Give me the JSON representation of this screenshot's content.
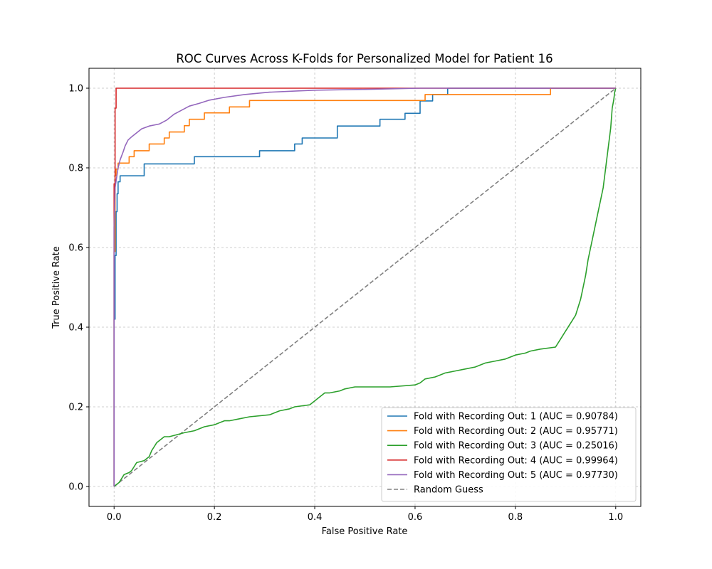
{
  "chart_data": {
    "type": "line",
    "title": "ROC Curves Across K-Folds for Personalized Model for Patient 16",
    "xlabel": "False Positive Rate",
    "ylabel": "True Positive Rate",
    "xlim": [
      -0.05,
      1.05
    ],
    "ylim": [
      -0.05,
      1.05
    ],
    "xticks": [
      0.0,
      0.2,
      0.4,
      0.6,
      0.8,
      1.0
    ],
    "yticks": [
      0.0,
      0.2,
      0.4,
      0.6,
      0.8,
      1.0
    ],
    "xtick_labels": [
      "0.0",
      "0.2",
      "0.4",
      "0.6",
      "0.8",
      "1.0"
    ],
    "ytick_labels": [
      "0.0",
      "0.2",
      "0.4",
      "0.6",
      "0.8",
      "1.0"
    ],
    "grid": true,
    "legend_position": "lower-right",
    "series": [
      {
        "name": "Fold with Recording Out: 1 (AUC = 0.90784)",
        "color": "#1f77b4",
        "style": "solid",
        "x": [
          0.0,
          0.0,
          0.002,
          0.002,
          0.004,
          0.004,
          0.006,
          0.006,
          0.008,
          0.008,
          0.012,
          0.012,
          0.06,
          0.06,
          0.16,
          0.16,
          0.29,
          0.29,
          0.36,
          0.36,
          0.375,
          0.375,
          0.445,
          0.445,
          0.53,
          0.53,
          0.58,
          0.58,
          0.61,
          0.61,
          0.635,
          0.635,
          0.665,
          0.665,
          1.0
        ],
        "y": [
          0.0,
          0.42,
          0.42,
          0.58,
          0.58,
          0.69,
          0.69,
          0.735,
          0.735,
          0.765,
          0.765,
          0.78,
          0.78,
          0.81,
          0.81,
          0.828,
          0.828,
          0.843,
          0.843,
          0.86,
          0.86,
          0.875,
          0.875,
          0.905,
          0.905,
          0.922,
          0.922,
          0.937,
          0.937,
          0.968,
          0.968,
          0.984,
          0.984,
          1.0,
          1.0
        ]
      },
      {
        "name": "Fold with Recording Out: 2 (AUC = 0.95771)",
        "color": "#ff7f0e",
        "style": "solid",
        "x": [
          0.0,
          0.0,
          0.002,
          0.002,
          0.004,
          0.004,
          0.008,
          0.008,
          0.03,
          0.03,
          0.04,
          0.04,
          0.07,
          0.07,
          0.1,
          0.1,
          0.11,
          0.11,
          0.14,
          0.14,
          0.15,
          0.15,
          0.18,
          0.18,
          0.23,
          0.23,
          0.27,
          0.27,
          0.62,
          0.62,
          0.87,
          0.87,
          1.0
        ],
        "y": [
          0.0,
          0.59,
          0.59,
          0.78,
          0.78,
          0.797,
          0.797,
          0.812,
          0.812,
          0.828,
          0.828,
          0.843,
          0.843,
          0.86,
          0.86,
          0.875,
          0.875,
          0.89,
          0.89,
          0.906,
          0.906,
          0.922,
          0.922,
          0.938,
          0.938,
          0.953,
          0.953,
          0.969,
          0.969,
          0.984,
          0.984,
          1.0,
          1.0
        ]
      },
      {
        "name": "Fold with Recording Out: 3 (AUC = 0.25016)",
        "color": "#2ca02c",
        "style": "solid",
        "x": [
          0.0,
          0.01,
          0.015,
          0.02,
          0.03,
          0.035,
          0.04,
          0.045,
          0.06,
          0.07,
          0.075,
          0.08,
          0.085,
          0.09,
          0.1,
          0.11,
          0.14,
          0.16,
          0.18,
          0.2,
          0.21,
          0.22,
          0.23,
          0.25,
          0.27,
          0.31,
          0.32,
          0.33,
          0.35,
          0.36,
          0.39,
          0.4,
          0.41,
          0.42,
          0.43,
          0.45,
          0.46,
          0.48,
          0.5,
          0.55,
          0.6,
          0.61,
          0.62,
          0.64,
          0.65,
          0.66,
          0.68,
          0.7,
          0.72,
          0.74,
          0.76,
          0.78,
          0.8,
          0.82,
          0.83,
          0.85,
          0.88,
          0.89,
          0.9,
          0.91,
          0.92,
          0.93,
          0.935,
          0.94,
          0.945,
          0.95,
          0.955,
          0.96,
          0.965,
          0.97,
          0.975,
          0.98,
          0.985,
          0.99,
          0.993,
          0.996,
          0.998,
          1.0
        ],
        "y": [
          0.0,
          0.01,
          0.02,
          0.03,
          0.035,
          0.04,
          0.05,
          0.06,
          0.065,
          0.075,
          0.09,
          0.1,
          0.11,
          0.115,
          0.125,
          0.125,
          0.135,
          0.14,
          0.15,
          0.155,
          0.16,
          0.165,
          0.165,
          0.17,
          0.175,
          0.18,
          0.185,
          0.19,
          0.195,
          0.2,
          0.205,
          0.215,
          0.225,
          0.235,
          0.235,
          0.24,
          0.245,
          0.25,
          0.25,
          0.25,
          0.255,
          0.26,
          0.27,
          0.275,
          0.28,
          0.285,
          0.29,
          0.295,
          0.3,
          0.31,
          0.315,
          0.32,
          0.33,
          0.335,
          0.34,
          0.345,
          0.35,
          0.37,
          0.39,
          0.41,
          0.43,
          0.47,
          0.5,
          0.53,
          0.57,
          0.6,
          0.63,
          0.66,
          0.69,
          0.72,
          0.75,
          0.8,
          0.85,
          0.9,
          0.95,
          0.97,
          0.99,
          1.0
        ]
      },
      {
        "name": "Fold with Recording Out: 4 (AUC = 0.99964)",
        "color": "#d62728",
        "style": "solid",
        "x": [
          0.0,
          0.0,
          0.0,
          0.002,
          0.002,
          0.004,
          0.004,
          1.0
        ],
        "y": [
          0.0,
          0.6,
          0.76,
          0.76,
          0.95,
          0.95,
          1.0,
          1.0
        ]
      },
      {
        "name": "Fold with Recording Out: 5 (AUC = 0.97730)",
        "color": "#9467bd",
        "style": "solid",
        "x": [
          0.0,
          0.0,
          0.002,
          0.005,
          0.008,
          0.012,
          0.018,
          0.022,
          0.028,
          0.035,
          0.045,
          0.055,
          0.07,
          0.09,
          0.105,
          0.12,
          0.135,
          0.15,
          0.17,
          0.19,
          0.22,
          0.26,
          0.31,
          0.4,
          0.5,
          0.61,
          1.0
        ],
        "y": [
          0.0,
          0.65,
          0.75,
          0.775,
          0.8,
          0.82,
          0.84,
          0.855,
          0.87,
          0.878,
          0.888,
          0.898,
          0.905,
          0.91,
          0.92,
          0.935,
          0.945,
          0.955,
          0.962,
          0.97,
          0.977,
          0.984,
          0.99,
          0.995,
          0.997,
          1.0,
          1.0
        ]
      },
      {
        "name": "Random Guess",
        "color": "#808080",
        "style": "dashed",
        "x": [
          0.0,
          1.0
        ],
        "y": [
          0.0,
          1.0
        ]
      }
    ]
  }
}
